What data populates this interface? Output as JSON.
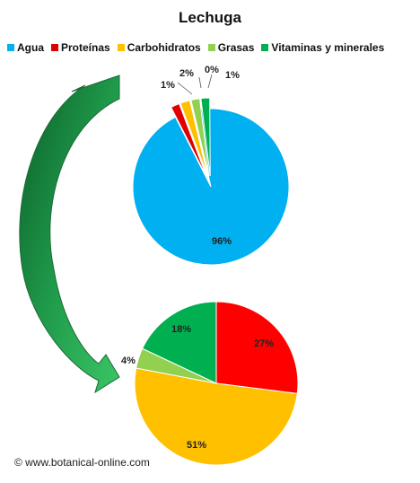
{
  "chart_data": [
    {
      "type": "pie",
      "title": "Lechuga",
      "categories": [
        "Agua",
        "Proteínas",
        "Carbohidratos",
        "Grasas",
        "Vitaminas y minerales"
      ],
      "colors": [
        "#00b0f0",
        "#e00000",
        "#ffc000",
        "#92d050",
        "#00b050"
      ],
      "values": [
        96,
        1,
        2,
        0,
        1
      ],
      "labels": [
        "96%",
        "1%",
        "2%",
        "0%",
        "1%"
      ],
      "legend_position": "top"
    },
    {
      "type": "pie",
      "categories": [
        "Proteínas",
        "Carbohidratos",
        "Grasas",
        "Vitaminas y minerales"
      ],
      "colors": [
        "#ff0000",
        "#ffc000",
        "#92d050",
        "#00b050"
      ],
      "values": [
        27,
        51,
        4,
        18
      ],
      "labels": [
        "27%",
        "51%",
        "4%",
        "18%"
      ]
    }
  ],
  "watermark": "© www.botanical-online.com"
}
